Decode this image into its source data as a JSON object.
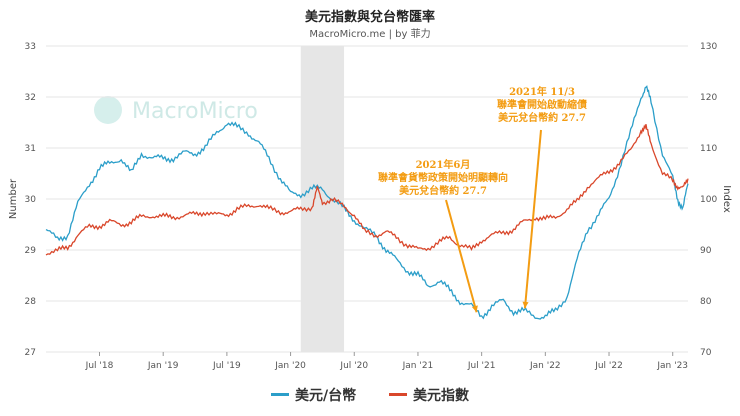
{
  "header": {
    "title": "美元指數與兌台幣匯率",
    "subtitle": "MacroMicro.me | by 菲力"
  },
  "watermark": "MacroMicro",
  "colors": {
    "twd": "#2b9ec9",
    "dxy": "#d9472b",
    "annotation": "#f39c12",
    "shade": "#e6e6e6",
    "grid": "#e6e6e6"
  },
  "legend": {
    "twd_label": "美元/台幣",
    "dxy_label": "美元指數"
  },
  "chart_data": {
    "type": "line",
    "x_ticks": [
      "Jul '18",
      "Jan '19",
      "Jul '19",
      "Jan '20",
      "Jul '20",
      "Jan '21",
      "Jul '21",
      "Jan '22",
      "Jul '22",
      "Jan '23"
    ],
    "x_tick_dates": [
      2018.5,
      2019.0,
      2019.5,
      2020.0,
      2020.5,
      2021.0,
      2021.5,
      2022.0,
      2022.5,
      2023.0
    ],
    "x_range": [
      2018.08,
      2023.12
    ],
    "left_axis": {
      "label": "Number",
      "range": [
        27,
        33
      ],
      "ticks": [
        "27",
        "28",
        "29",
        "30",
        "31",
        "32",
        "33"
      ]
    },
    "right_axis": {
      "label": "Index",
      "range": [
        70,
        130
      ],
      "ticks": [
        "70",
        "80",
        "90",
        "100",
        "110",
        "120",
        "130"
      ]
    },
    "shaded_region": [
      2020.08,
      2020.42
    ],
    "series": [
      {
        "name": "美元/台幣",
        "axis": "left",
        "points": [
          [
            2018.08,
            29.4
          ],
          [
            2018.17,
            29.2
          ],
          [
            2018.25,
            29.3
          ],
          [
            2018.33,
            29.9
          ],
          [
            2018.42,
            30.3
          ],
          [
            2018.5,
            30.6
          ],
          [
            2018.58,
            30.7
          ],
          [
            2018.67,
            30.8
          ],
          [
            2018.75,
            30.5
          ],
          [
            2018.83,
            30.9
          ],
          [
            2018.92,
            30.8
          ],
          [
            2019.0,
            30.8
          ],
          [
            2019.08,
            30.8
          ],
          [
            2019.17,
            30.9
          ],
          [
            2019.25,
            30.9
          ],
          [
            2019.33,
            31.0
          ],
          [
            2019.42,
            31.3
          ],
          [
            2019.5,
            31.5
          ],
          [
            2019.58,
            31.4
          ],
          [
            2019.67,
            31.3
          ],
          [
            2019.75,
            31.1
          ],
          [
            2019.83,
            30.8
          ],
          [
            2019.92,
            30.4
          ],
          [
            2020.0,
            30.1
          ],
          [
            2020.08,
            30.1
          ],
          [
            2020.17,
            30.2
          ],
          [
            2020.25,
            30.2
          ],
          [
            2020.33,
            30.0
          ],
          [
            2020.42,
            29.8
          ],
          [
            2020.5,
            29.6
          ],
          [
            2020.58,
            29.4
          ],
          [
            2020.67,
            29.3
          ],
          [
            2020.75,
            29.0
          ],
          [
            2020.83,
            28.8
          ],
          [
            2020.92,
            28.6
          ],
          [
            2021.0,
            28.5
          ],
          [
            2021.08,
            28.3
          ],
          [
            2021.17,
            28.4
          ],
          [
            2021.25,
            28.2
          ],
          [
            2021.33,
            28.0
          ],
          [
            2021.42,
            27.9
          ],
          [
            2021.5,
            27.7
          ],
          [
            2021.58,
            27.9
          ],
          [
            2021.67,
            28.0
          ],
          [
            2021.75,
            27.8
          ],
          [
            2021.83,
            27.8
          ],
          [
            2021.92,
            27.7
          ],
          [
            2022.0,
            27.7
          ],
          [
            2022.08,
            27.8
          ],
          [
            2022.17,
            28.1
          ],
          [
            2022.25,
            28.8
          ],
          [
            2022.33,
            29.4
          ],
          [
            2022.42,
            29.7
          ],
          [
            2022.5,
            30.0
          ],
          [
            2022.58,
            30.6
          ],
          [
            2022.67,
            31.3
          ],
          [
            2022.75,
            32.0
          ],
          [
            2022.79,
            32.2
          ],
          [
            2022.83,
            31.9
          ],
          [
            2022.92,
            30.9
          ],
          [
            2023.0,
            30.4
          ],
          [
            2023.04,
            30.0
          ],
          [
            2023.08,
            29.8
          ],
          [
            2023.12,
            30.3
          ]
        ]
      },
      {
        "name": "美元指數",
        "axis": "right",
        "points": [
          [
            2018.08,
            89.5
          ],
          [
            2018.17,
            89.8
          ],
          [
            2018.25,
            90.5
          ],
          [
            2018.33,
            93.0
          ],
          [
            2018.42,
            94.5
          ],
          [
            2018.5,
            94.8
          ],
          [
            2018.58,
            95.5
          ],
          [
            2018.67,
            95.0
          ],
          [
            2018.75,
            95.5
          ],
          [
            2018.83,
            96.5
          ],
          [
            2018.92,
            96.8
          ],
          [
            2019.0,
            96.5
          ],
          [
            2019.08,
            96.5
          ],
          [
            2019.17,
            96.8
          ],
          [
            2019.25,
            97.0
          ],
          [
            2019.33,
            97.5
          ],
          [
            2019.42,
            96.8
          ],
          [
            2019.5,
            97.0
          ],
          [
            2019.58,
            98.0
          ],
          [
            2019.67,
            98.5
          ],
          [
            2019.75,
            99.0
          ],
          [
            2019.83,
            98.0
          ],
          [
            2019.92,
            97.5
          ],
          [
            2020.0,
            97.5
          ],
          [
            2020.08,
            98.0
          ],
          [
            2020.17,
            98.5
          ],
          [
            2020.21,
            102.0
          ],
          [
            2020.25,
            99.5
          ],
          [
            2020.33,
            99.8
          ],
          [
            2020.42,
            98.5
          ],
          [
            2020.5,
            97.0
          ],
          [
            2020.58,
            93.5
          ],
          [
            2020.67,
            93.0
          ],
          [
            2020.75,
            93.5
          ],
          [
            2020.83,
            92.5
          ],
          [
            2020.92,
            91.0
          ],
          [
            2021.0,
            90.0
          ],
          [
            2021.08,
            90.5
          ],
          [
            2021.17,
            91.5
          ],
          [
            2021.25,
            92.5
          ],
          [
            2021.33,
            91.0
          ],
          [
            2021.42,
            90.0
          ],
          [
            2021.5,
            92.0
          ],
          [
            2021.58,
            92.8
          ],
          [
            2021.67,
            93.5
          ],
          [
            2021.75,
            94.0
          ],
          [
            2021.83,
            95.5
          ],
          [
            2021.92,
            96.5
          ],
          [
            2022.0,
            96.0
          ],
          [
            2022.08,
            96.5
          ],
          [
            2022.17,
            98.0
          ],
          [
            2022.25,
            99.5
          ],
          [
            2022.33,
            102.5
          ],
          [
            2022.42,
            104.0
          ],
          [
            2022.5,
            105.5
          ],
          [
            2022.58,
            107.0
          ],
          [
            2022.67,
            109.5
          ],
          [
            2022.75,
            113.5
          ],
          [
            2022.79,
            114.0
          ],
          [
            2022.83,
            111.0
          ],
          [
            2022.92,
            105.0
          ],
          [
            2023.0,
            103.5
          ],
          [
            2023.04,
            102.5
          ],
          [
            2023.08,
            102.0
          ],
          [
            2023.12,
            104.0
          ]
        ]
      }
    ],
    "annotations": [
      {
        "lines": [
          "2021年6月",
          "聯準會貨幣政策開始明顯轉向",
          "美元兌台幣約 27.7"
        ],
        "target": [
          2021.46,
          27.7
        ]
      },
      {
        "lines": [
          "2021年 11/3",
          "聯準會開始啟動縮債",
          "美元兌台幣約 27.7"
        ],
        "target": [
          2021.84,
          27.78
        ]
      }
    ]
  }
}
